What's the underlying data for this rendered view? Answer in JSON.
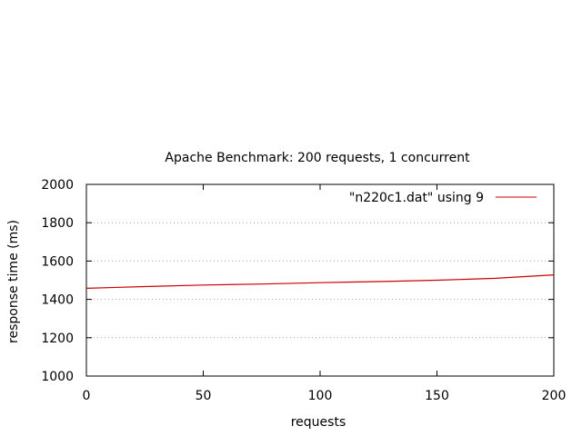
{
  "chart_data": {
    "type": "line",
    "title": "Apache Benchmark: 200 requests, 1 concurrent",
    "xlabel": "requests",
    "ylabel": "response time (ms)",
    "xlim": [
      0,
      200
    ],
    "ylim": [
      1000,
      2000
    ],
    "xticks": [
      0,
      50,
      100,
      150,
      200
    ],
    "yticks": [
      1000,
      1200,
      1400,
      1600,
      1800,
      2000
    ],
    "grid": "horizontal dotted",
    "legend_position": "top-right",
    "series": [
      {
        "name": "\"n220c1.dat\" using 9",
        "color": "#cc0000",
        "x": [
          0,
          25,
          50,
          75,
          100,
          125,
          150,
          175,
          200
        ],
        "y": [
          1458,
          1467,
          1475,
          1480,
          1487,
          1493,
          1500,
          1510,
          1528
        ]
      }
    ]
  }
}
